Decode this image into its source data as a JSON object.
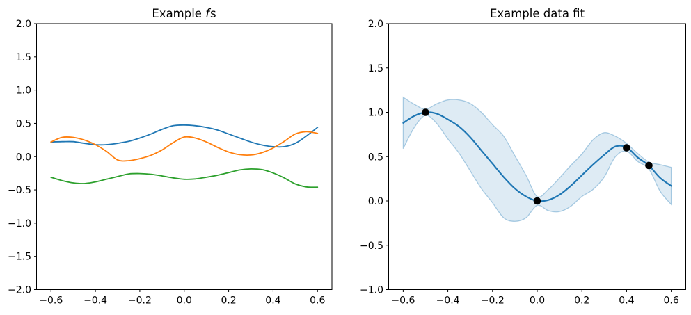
{
  "figure": {
    "background": "#ffffff",
    "text_color": "#000000",
    "spine_color": "#000000"
  },
  "chart_data": [
    {
      "type": "line",
      "panel": "left",
      "title": "Example fs",
      "title_parts": {
        "prefix": "Example ",
        "italic": "f",
        "suffix": "s"
      },
      "xlim": [
        -0.665,
        0.665
      ],
      "ylim": [
        -2.0,
        2.0
      ],
      "grid": false,
      "legend": "none",
      "xticks": {
        "values": [
          -0.6,
          -0.4,
          -0.2,
          0.0,
          0.2,
          0.4,
          0.6
        ],
        "labels": [
          "−0.6",
          "−0.4",
          "−0.2",
          "0.0",
          "0.2",
          "0.4",
          "0.6"
        ]
      },
      "yticks": {
        "values": [
          2.0,
          1.5,
          1.0,
          0.5,
          0.0,
          -0.5,
          -1.0,
          -1.5,
          -2.0
        ],
        "labels": [
          "2.0",
          "1.5",
          "1.0",
          "0.5",
          "0.0",
          "−0.5",
          "−1.0",
          "−1.5",
          "−2.0"
        ]
      },
      "x": [
        -0.6,
        -0.55,
        -0.5,
        -0.45,
        -0.4,
        -0.35,
        -0.3,
        -0.25,
        -0.2,
        -0.15,
        -0.1,
        -0.05,
        0.0,
        0.05,
        0.1,
        0.15,
        0.2,
        0.25,
        0.3,
        0.35,
        0.4,
        0.45,
        0.5,
        0.55,
        0.6
      ],
      "series": [
        {
          "name": "f-sample-1",
          "color": "#1f77b4",
          "width": 1.8,
          "values": [
            0.22,
            0.225,
            0.225,
            0.2,
            0.18,
            0.18,
            0.2,
            0.23,
            0.28,
            0.34,
            0.41,
            0.465,
            0.475,
            0.465,
            0.44,
            0.4,
            0.34,
            0.28,
            0.22,
            0.175,
            0.15,
            0.15,
            0.2,
            0.31,
            0.44
          ]
        },
        {
          "name": "f-sample-2",
          "color": "#ff7f0e",
          "width": 1.8,
          "values": [
            0.22,
            0.29,
            0.29,
            0.25,
            0.18,
            0.08,
            -0.05,
            -0.06,
            -0.03,
            0.02,
            0.1,
            0.21,
            0.295,
            0.28,
            0.22,
            0.14,
            0.07,
            0.03,
            0.025,
            0.06,
            0.13,
            0.23,
            0.34,
            0.375,
            0.35
          ]
        },
        {
          "name": "f-sample-3",
          "color": "#2ca02c",
          "width": 1.8,
          "values": [
            -0.31,
            -0.36,
            -0.395,
            -0.405,
            -0.38,
            -0.34,
            -0.3,
            -0.26,
            -0.255,
            -0.265,
            -0.29,
            -0.32,
            -0.34,
            -0.335,
            -0.31,
            -0.28,
            -0.24,
            -0.2,
            -0.185,
            -0.195,
            -0.245,
            -0.32,
            -0.41,
            -0.455,
            -0.46
          ]
        }
      ]
    },
    {
      "type": "line",
      "panel": "right",
      "title": "Example data fit",
      "xlim": [
        -0.665,
        0.665
      ],
      "ylim": [
        -1.0,
        2.0
      ],
      "grid": false,
      "legend": "none",
      "xticks": {
        "values": [
          -0.6,
          -0.4,
          -0.2,
          0.0,
          0.2,
          0.4,
          0.6
        ],
        "labels": [
          "−0.6",
          "−0.4",
          "−0.2",
          "0.0",
          "0.2",
          "0.4",
          "0.6"
        ]
      },
      "yticks": {
        "values": [
          2.0,
          1.5,
          1.0,
          0.5,
          0.0,
          -0.5,
          -1.0
        ],
        "labels": [
          "2.0",
          "1.5",
          "1.0",
          "0.5",
          "0.0",
          "−0.5",
          "−1.0"
        ]
      },
      "x": [
        -0.6,
        -0.55,
        -0.5,
        -0.45,
        -0.4,
        -0.35,
        -0.3,
        -0.25,
        -0.2,
        -0.15,
        -0.1,
        -0.05,
        0.0,
        0.05,
        0.1,
        0.15,
        0.2,
        0.25,
        0.3,
        0.35,
        0.4,
        0.45,
        0.5,
        0.55,
        0.6
      ],
      "series": [
        {
          "name": "posterior-mean",
          "color": "#1f77b4",
          "width": 2.2,
          "values": [
            0.88,
            0.96,
            1.0,
            0.985,
            0.92,
            0.84,
            0.72,
            0.57,
            0.42,
            0.27,
            0.14,
            0.05,
            0.0,
            0.01,
            0.07,
            0.17,
            0.29,
            0.41,
            0.52,
            0.615,
            0.605,
            0.49,
            0.4,
            0.26,
            0.17
          ]
        }
      ],
      "band": {
        "name": "uncertainty-band",
        "color": "#1f77b4",
        "fill_opacity": 0.15,
        "edge_opacity": 0.35,
        "upper": [
          1.17,
          1.09,
          1.035,
          1.095,
          1.14,
          1.14,
          1.1,
          1.0,
          0.86,
          0.73,
          0.51,
          0.29,
          0.05,
          0.13,
          0.26,
          0.4,
          0.53,
          0.69,
          0.77,
          0.73,
          0.65,
          0.535,
          0.44,
          0.41,
          0.38
        ],
        "lower": [
          0.59,
          0.83,
          0.965,
          0.875,
          0.7,
          0.54,
          0.34,
          0.14,
          -0.02,
          -0.19,
          -0.23,
          -0.19,
          -0.05,
          -0.11,
          -0.12,
          -0.06,
          0.05,
          0.13,
          0.27,
          0.5,
          0.56,
          0.445,
          0.36,
          0.11,
          -0.04
        ]
      },
      "points": {
        "name": "observations",
        "color": "#000000",
        "radius": 5.3,
        "x": [
          -0.5,
          0.0,
          0.4,
          0.5
        ],
        "y": [
          1.0,
          0.0,
          0.6,
          0.4
        ]
      }
    }
  ]
}
